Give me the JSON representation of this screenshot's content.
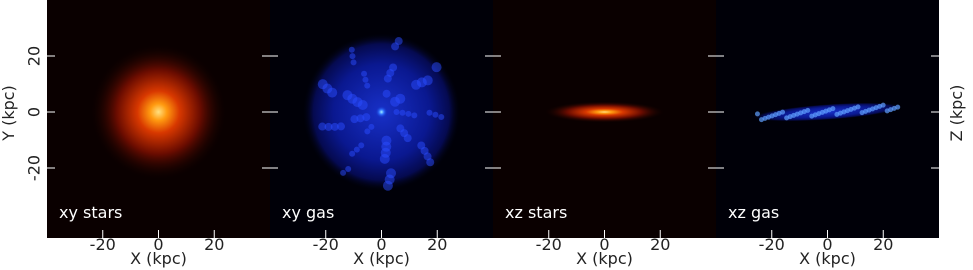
{
  "figure": {
    "ylabel": "Y (kpc)",
    "y2label": "Z (kpc)",
    "xlim": [
      -40,
      40
    ],
    "ylim": [
      -45,
      40
    ],
    "xticks": [
      -20,
      0,
      20
    ],
    "yticks": [
      -20,
      0,
      20
    ],
    "panels": [
      {
        "label": "xy stars",
        "xlabel": "X (kpc)",
        "colormap": "heat"
      },
      {
        "label": "xy gas",
        "xlabel": "X (kpc)",
        "colormap": "blue"
      },
      {
        "label": "xz stars",
        "xlabel": "X (kpc)",
        "colormap": "heat"
      },
      {
        "label": "xz gas",
        "xlabel": "X (kpc)",
        "colormap": "blue"
      }
    ]
  }
}
